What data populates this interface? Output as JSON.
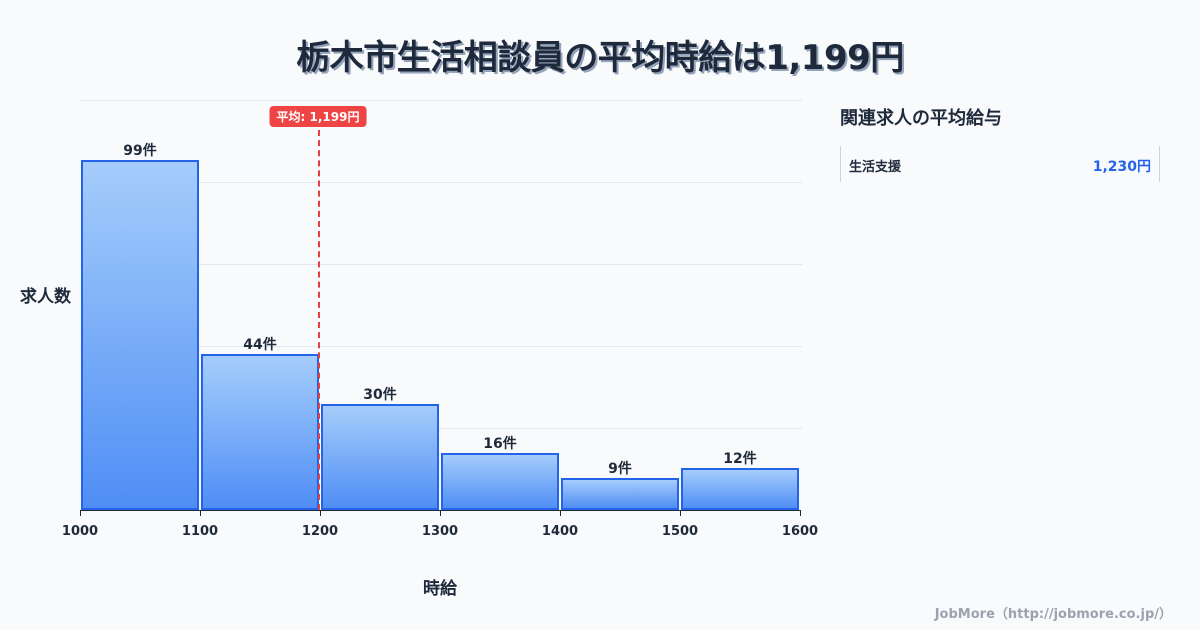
{
  "title": "栃木市生活相談員の平均時給は1,199円",
  "chart_data": {
    "type": "bar",
    "title": "栃木市生活相談員の平均時給は1,199円",
    "xlabel": "時給",
    "ylabel": "求人数",
    "categories": [
      "1000-1100",
      "1100-1200",
      "1200-1300",
      "1300-1400",
      "1400-1500",
      "1500-1600"
    ],
    "bin_edges": [
      1000,
      1100,
      1200,
      1300,
      1400,
      1500,
      1600
    ],
    "values": [
      99,
      44,
      30,
      16,
      9,
      12
    ],
    "value_labels": [
      "99件",
      "44件",
      "30件",
      "16件",
      "9件",
      "12件"
    ],
    "x_ticks": [
      "1000",
      "1100",
      "1200",
      "1300",
      "1400",
      "1500",
      "1600"
    ],
    "ylim": [
      0,
      116
    ],
    "grid": true,
    "annotations": [
      {
        "type": "vline",
        "x": 1199,
        "label": "平均: 1,199円",
        "color": "#ef4444"
      }
    ],
    "bar_color": "#4f8ef5",
    "bar_border_color": "#2563eb"
  },
  "average_badge": "平均: 1,199円",
  "sidebar": {
    "title": "関連求人の平均給与",
    "items": [
      {
        "name": "生活支援",
        "value": "1,230円"
      }
    ]
  },
  "footer": "JobMore（http://jobmore.co.jp/）"
}
